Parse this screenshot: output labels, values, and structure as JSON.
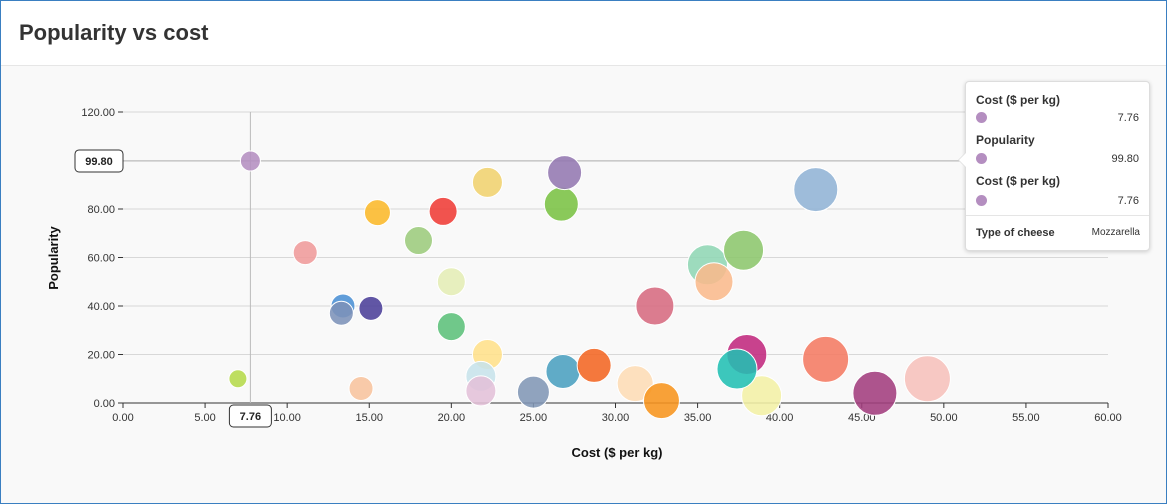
{
  "header": {
    "title": "Popularity vs cost"
  },
  "colors": {
    "grid": "#d8d8d8",
    "guide": "#bbbbbb",
    "highlight": "#b48ec0"
  },
  "chart_data": {
    "type": "scatter",
    "xlabel": "Cost ($ per kg)",
    "ylabel": "Popularity",
    "xlim": [
      0,
      60
    ],
    "ylim": [
      0,
      120
    ],
    "xticks": [
      "0.00",
      "5.00",
      "10.00",
      "15.00",
      "20.00",
      "25.00",
      "30.00",
      "35.00",
      "40.00",
      "45.00",
      "50.00",
      "55.00",
      "60.00"
    ],
    "yticks": [
      "0.00",
      "20.00",
      "40.00",
      "60.00",
      "80.00",
      "100.00",
      "120.00"
    ],
    "grid": true,
    "crosshair": {
      "x": 7.76,
      "y": 99.8,
      "x_label": "7.76",
      "y_label": "99.80"
    },
    "points": [
      {
        "x": 7.76,
        "y": 99.8,
        "size": 10,
        "color": "#b48ec0"
      },
      {
        "x": 7.0,
        "y": 10,
        "size": 9,
        "color": "#b5d94a"
      },
      {
        "x": 11.1,
        "y": 62,
        "size": 12,
        "color": "#ef9a9a"
      },
      {
        "x": 13.4,
        "y": 40,
        "size": 12,
        "color": "#4a90d4"
      },
      {
        "x": 13.3,
        "y": 37,
        "size": 12,
        "color": "#7c92b8"
      },
      {
        "x": 15.1,
        "y": 39,
        "size": 12,
        "color": "#4b3f99"
      },
      {
        "x": 15.5,
        "y": 78.5,
        "size": 13,
        "color": "#fbb829"
      },
      {
        "x": 14.5,
        "y": 6,
        "size": 12,
        "color": "#f7c39d"
      },
      {
        "x": 18.0,
        "y": 67,
        "size": 14,
        "color": "#9ccb7c"
      },
      {
        "x": 19.5,
        "y": 79,
        "size": 14,
        "color": "#ef3b36"
      },
      {
        "x": 20.0,
        "y": 50,
        "size": 14,
        "color": "#e4edb5"
      },
      {
        "x": 20.0,
        "y": 31.5,
        "size": 14,
        "color": "#5cc07a"
      },
      {
        "x": 22.2,
        "y": 91,
        "size": 15,
        "color": "#f0d26e"
      },
      {
        "x": 22.2,
        "y": 20,
        "size": 15,
        "color": "#ffe08a"
      },
      {
        "x": 21.8,
        "y": 11,
        "size": 15,
        "color": "#c7e2ea"
      },
      {
        "x": 21.8,
        "y": 5,
        "size": 15,
        "color": "#e3c0d8"
      },
      {
        "x": 25.0,
        "y": 4.5,
        "size": 16,
        "color": "#8196b5"
      },
      {
        "x": 26.7,
        "y": 82,
        "size": 17,
        "color": "#7ac143"
      },
      {
        "x": 26.9,
        "y": 95,
        "size": 17,
        "color": "#9378b0"
      },
      {
        "x": 26.8,
        "y": 13,
        "size": 17,
        "color": "#4a9fbf"
      },
      {
        "x": 28.7,
        "y": 15.5,
        "size": 17,
        "color": "#f26522"
      },
      {
        "x": 31.2,
        "y": 8,
        "size": 18,
        "color": "#fddcb5"
      },
      {
        "x": 32.8,
        "y": 1,
        "size": 18,
        "color": "#f7941d"
      },
      {
        "x": 32.4,
        "y": 40,
        "size": 19,
        "color": "#d66a7f"
      },
      {
        "x": 35.6,
        "y": 57,
        "size": 20,
        "color": "#8fd6b4"
      },
      {
        "x": 36.0,
        "y": 50,
        "size": 19,
        "color": "#f9b98c"
      },
      {
        "x": 37.8,
        "y": 63,
        "size": 20,
        "color": "#8cc66c"
      },
      {
        "x": 38.0,
        "y": 20,
        "size": 20,
        "color": "#c0287d"
      },
      {
        "x": 38.9,
        "y": 3,
        "size": 20,
        "color": "#f3f0a5"
      },
      {
        "x": 37.4,
        "y": 14,
        "size": 20,
        "color": "#21bfb3"
      },
      {
        "x": 42.2,
        "y": 88,
        "size": 22,
        "color": "#91b3d5"
      },
      {
        "x": 42.8,
        "y": 18,
        "size": 23,
        "color": "#f47a62"
      },
      {
        "x": 45.8,
        "y": 4,
        "size": 22,
        "color": "#a23c7d"
      },
      {
        "x": 49.0,
        "y": 10,
        "size": 23,
        "color": "#f6c0bb"
      }
    ]
  },
  "tooltip": {
    "rows": [
      {
        "key": "Cost ($ per kg)",
        "value": "7.76"
      },
      {
        "key": "Popularity",
        "value": "99.80"
      },
      {
        "key": "Cost ($ per kg)",
        "value": "7.76"
      }
    ],
    "footer_key": "Type of cheese",
    "footer_value": "Mozzarella"
  }
}
